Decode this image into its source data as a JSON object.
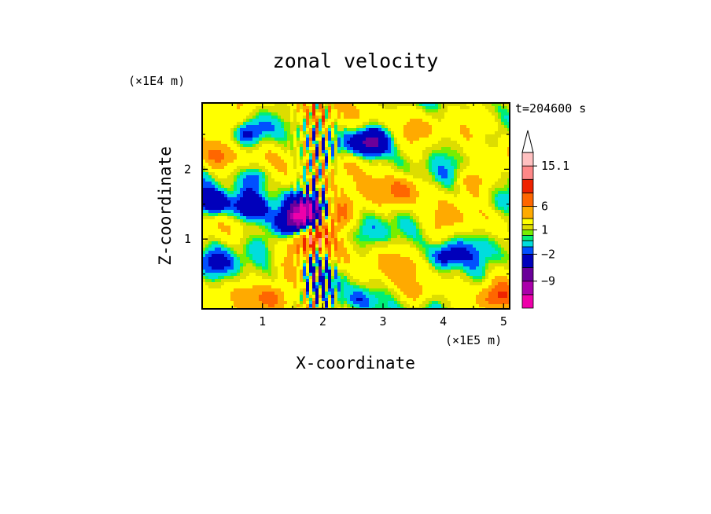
{
  "chart_data": {
    "type": "heatmap",
    "title": "zonal velocity",
    "xlabel": "X-coordinate",
    "ylabel": "Z-coordinate",
    "x_unit": "(×1E5 m)",
    "y_unit": "(×1E4 m)",
    "time_label": "t=204600 s",
    "xlim": [
      0,
      5.1
    ],
    "ylim": [
      0,
      2.95
    ],
    "xticks": [
      1,
      2,
      3,
      4,
      5
    ],
    "yticks": [
      1,
      2
    ],
    "colorbar": {
      "levels": [
        -15,
        -12,
        -9,
        -6,
        -2,
        -1,
        0,
        0.5,
        1,
        2,
        4,
        6,
        8,
        11,
        15.1
      ],
      "labels": [
        {
          "value": "15.1",
          "level_index": 14
        },
        {
          "value": "6",
          "level_index": 11
        },
        {
          "value": "1",
          "level_index": 8
        },
        {
          "value": "−2",
          "level_index": 4
        },
        {
          "value": "−9",
          "level_index": 2
        }
      ],
      "colors": [
        "#ee00aa",
        "#aa00aa",
        "#6a009a",
        "#0000bb",
        "#0050ff",
        "#00dddd",
        "#00ee77",
        "#77ee00",
        "#dddd00",
        "#ffff00",
        "#ffaa00",
        "#ff6600",
        "#ee2200",
        "#ff8888",
        "#ffc0c0"
      ],
      "extend_top": true
    },
    "blobs": [
      {
        "x": 0.2,
        "z": 1.5,
        "v": -7
      },
      {
        "x": 0.75,
        "z": 1.45,
        "v": -6
      },
      {
        "x": 0.9,
        "z": 1.9,
        "v": -5
      },
      {
        "x": 0.3,
        "z": 2.2,
        "v": 4
      },
      {
        "x": 0.5,
        "z": 2.7,
        "v": 5
      },
      {
        "x": 0.2,
        "z": 0.65,
        "v": -2
      },
      {
        "x": 1.0,
        "z": 0.9,
        "v": -2
      },
      {
        "x": 1.5,
        "z": 1.2,
        "v": -9
      },
      {
        "x": 1.75,
        "z": 1.4,
        "v": -12
      },
      {
        "x": 1.85,
        "z": 1.05,
        "v": 7
      },
      {
        "x": 1.55,
        "z": 0.5,
        "v": 4
      },
      {
        "x": 1.9,
        "z": 0.6,
        "v": -5
      },
      {
        "x": 0.8,
        "z": 2.55,
        "v": -3
      },
      {
        "x": 2.8,
        "z": 2.4,
        "v": -9
      },
      {
        "x": 2.45,
        "z": 2.1,
        "v": 4
      },
      {
        "x": 2.3,
        "z": 1.35,
        "v": 5
      },
      {
        "x": 2.15,
        "z": 0.7,
        "v": 2
      },
      {
        "x": 2.6,
        "z": 0.1,
        "v": -4
      },
      {
        "x": 3.35,
        "z": 1.7,
        "v": 5
      },
      {
        "x": 3.0,
        "z": 0.75,
        "v": 1
      },
      {
        "x": 3.2,
        "z": 2.8,
        "v": 2
      },
      {
        "x": 3.9,
        "z": 2.35,
        "v": -2
      },
      {
        "x": 3.9,
        "z": 1.1,
        "v": 1
      },
      {
        "x": 4.05,
        "z": 0.75,
        "v": -5
      },
      {
        "x": 4.45,
        "z": 1.85,
        "v": 4
      },
      {
        "x": 4.7,
        "z": 2.7,
        "v": 4
      },
      {
        "x": 4.85,
        "z": 1.5,
        "v": -2
      },
      {
        "x": 4.5,
        "z": 0.4,
        "v": -2
      },
      {
        "x": 4.9,
        "z": 0.15,
        "v": 4
      },
      {
        "x": 3.6,
        "z": 0.2,
        "v": 4
      },
      {
        "x": 1.2,
        "z": 0.15,
        "v": 4
      }
    ]
  }
}
